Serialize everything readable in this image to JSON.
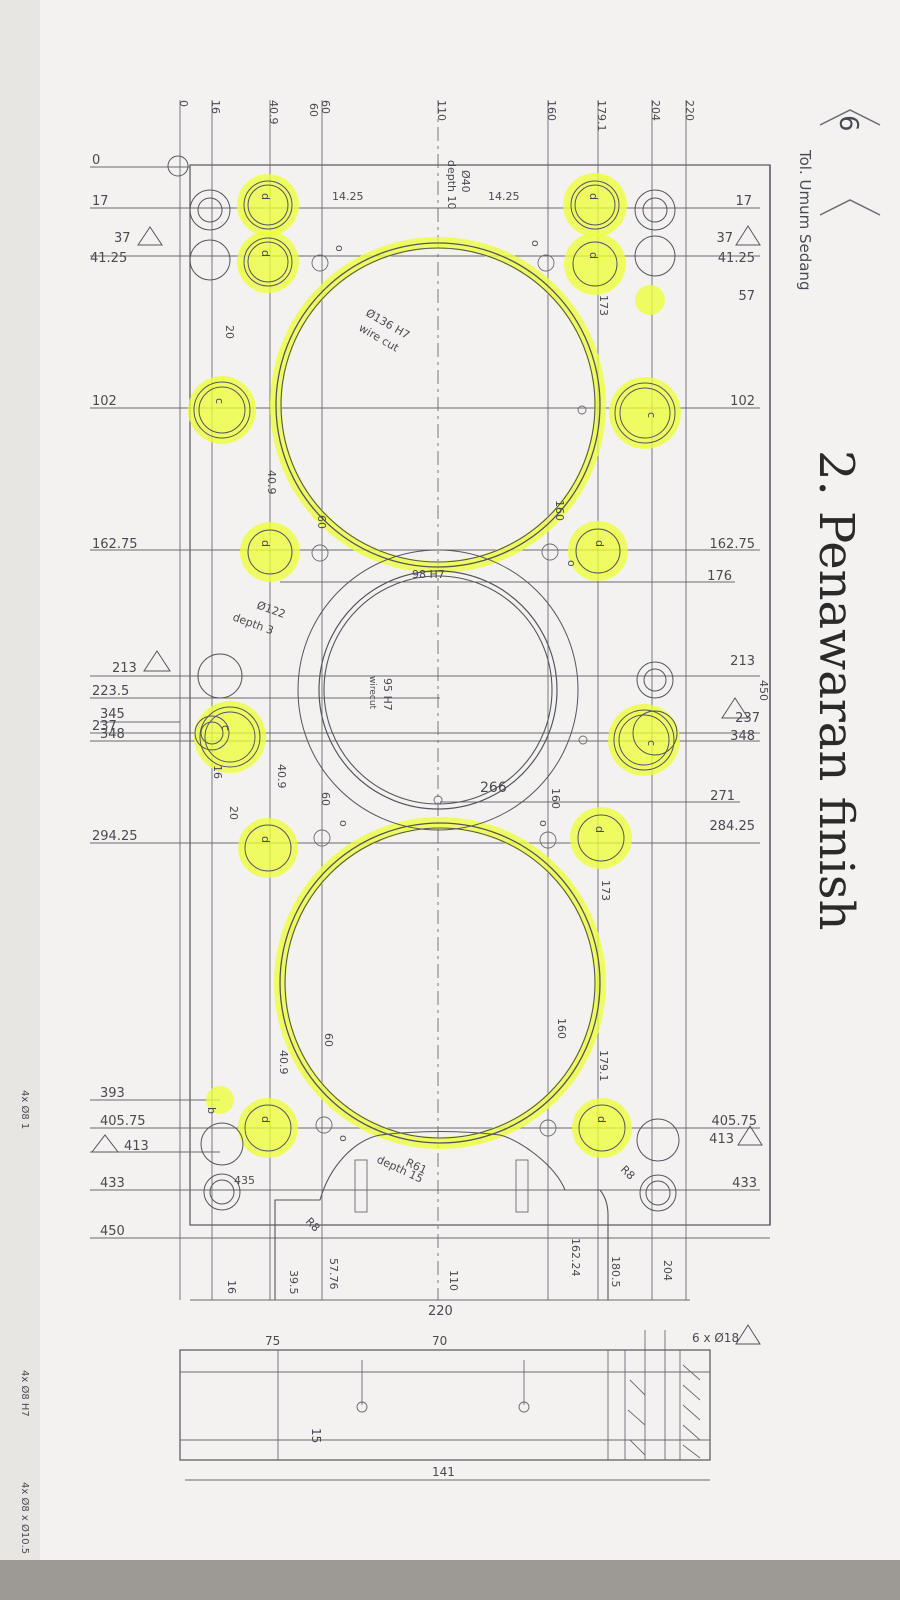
{
  "header": {
    "page_number": "6",
    "tolerance_note": "Tol. Umum Sedang",
    "handwritten_title": "2. Penawaran finish"
  },
  "left_ordinates": {
    "r220": "220",
    "r204": "204",
    "r179_1": "179.1",
    "r160": "160",
    "r110": "110",
    "r60": "60",
    "r40_9": "40.9",
    "r16": "16",
    "r0": "0"
  },
  "dimensions": {
    "d0": "0",
    "d17": "17",
    "d37": "37",
    "d41_25": "41.25",
    "d102": "102",
    "d162_75": "162.75",
    "d213": "213",
    "d223_5": "223.5",
    "d237": "237",
    "d294_25": "294.25",
    "d345": "345",
    "d348": "348",
    "d393": "393",
    "d405_75": "405.75",
    "d413": "413",
    "d433": "433",
    "d450": "450",
    "r17": "17",
    "r37": "37",
    "r41_25": "41.25",
    "r57": "57",
    "r102": "102",
    "r162_75": "162.75",
    "r176": "176",
    "r213": "213",
    "r237": "237",
    "r271": "271",
    "r284_25": "284.25",
    "r348": "348",
    "r405_75": "405.75",
    "r413": "413",
    "r433": "433",
    "overall_450": "450"
  },
  "inner_dims": {
    "i14_25a": "14.25",
    "i14_25b": "14.25",
    "i173a": "173",
    "i173b": "173",
    "i20a": "20",
    "i20b": "20",
    "i40_9a": "40.9",
    "i40_9b": "40.9",
    "i40_9c": "40.9",
    "i60a": "60",
    "i60b": "60",
    "i60c": "60",
    "i160a": "160",
    "i160b": "160",
    "i160c": "160",
    "i179_1": "179.1",
    "i16": "16",
    "i266": "266",
    "i435": "435",
    "i98h7": "98 H7",
    "i60d": "60"
  },
  "callouts": {
    "bore_top": "Ø136 H7",
    "bore_top_note": "wire cut",
    "depth_top": "Ø40",
    "depth_top_note": "depth 10",
    "counterbore": "Ø122",
    "counterbore_note": "depth 3",
    "bore_mid": "95 H7",
    "bore_mid_note": "wirecut",
    "radius": "R61",
    "radius_note": "depth 15",
    "r8": "R8",
    "bottom_holes": "6 x Ø18"
  },
  "bottom_dims": {
    "b16": "16",
    "b39_5": "39.5",
    "b57_76": "57.76",
    "b110": "110",
    "b220": "220",
    "b162_24": "162.24",
    "b180_5": "180.5",
    "b204": "204"
  },
  "section_view": {
    "s75": "75",
    "s70": "70",
    "s15": "15",
    "s141": "141"
  },
  "margin_notes": {
    "m1": "4x Ø8 x Ø10.5",
    "m2": "4x Ø8 H7",
    "m3": "4x Ø8 1"
  },
  "hole_letters": {
    "d": "d",
    "c": "c",
    "b": "b",
    "o": "o"
  },
  "colors": {
    "paper": "#f4f3f1",
    "ink": "#55555d",
    "highlight": "#ecff3a"
  }
}
